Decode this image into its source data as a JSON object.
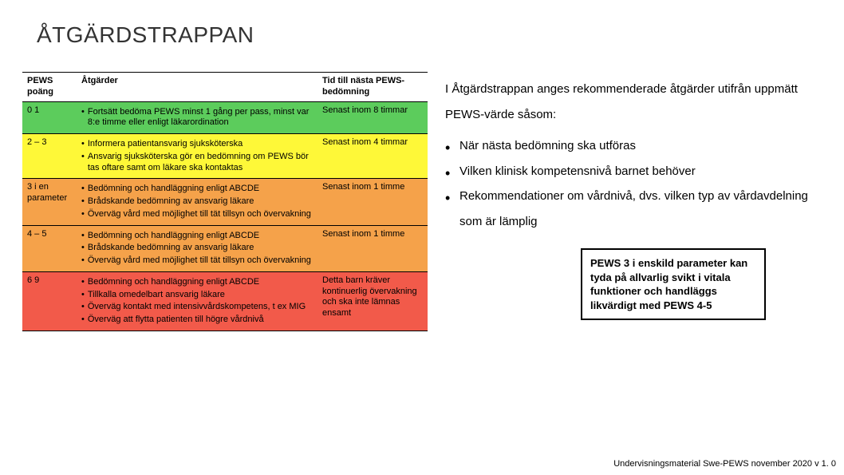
{
  "title": "ÅTGÄRDSTRAPPAN",
  "table": {
    "header": {
      "c1": "PEWS poäng",
      "c2": "Åtgärder",
      "c3": "Tid till nästa PEWS-bedömning"
    },
    "rows": [
      {
        "bg": "#5ccc5c",
        "c1": "0   1",
        "bullets": [
          "Fortsätt bedöma PEWS minst 1 gång per pass, minst var 8:e timme eller enligt läkarordination"
        ],
        "c3": "Senast inom 8 timmar"
      },
      {
        "bg": "#fef838",
        "c1": "2 – 3",
        "bullets": [
          "Informera patientansvarig sjuksköterska",
          "Ansvarig sjuksköterska gör en bedömning om PEWS bör tas oftare samt om läkare ska kontaktas"
        ],
        "c3": "Senast inom 4 timmar"
      },
      {
        "bg": "#f5a24a",
        "c1": "3 i en parameter",
        "bullets": [
          "Bedömning och handläggning enligt ABCDE",
          "Brådskande bedömning av ansvarig läkare",
          "Överväg vård med möjlighet till tät tillsyn och övervakning"
        ],
        "c3": "Senast inom 1 timme"
      },
      {
        "bg": "#f5a24a",
        "c1": "4 – 5",
        "bullets": [
          "Bedömning och handläggning enligt ABCDE",
          "Brådskande bedömning av ansvarig läkare",
          "Överväg vård med möjlighet till tät tillsyn och övervakning"
        ],
        "c3": "Senast inom 1 timme"
      },
      {
        "bg": "#f25a4a",
        "c1": "6   9",
        "bullets": [
          "Bedömning och handläggning enligt ABCDE",
          "Tillkalla omedelbart ansvarig läkare",
          "Överväg kontakt med intensivvårdskompetens, t ex MIG",
          "Överväg att flytta patienten till högre vårdnivå"
        ],
        "c3": "Detta barn kräver kontinuerlig övervakning och ska inte lämnas ensamt"
      }
    ]
  },
  "right": {
    "p1": "I Åtgärdstrappan anges rekommenderade åtgärder utifrån uppmätt PEWS-värde såsom:",
    "li1": "När nästa bedömning ska utföras",
    "li2": "Vilken klinisk kompetensnivå barnet behöver",
    "li3": "Rekommendationer om vårdnivå, dvs. vilken typ av vårdavdelning som är lämplig"
  },
  "boxnote": "PEWS  3 i enskild parameter kan tyda på allvarlig svikt i vitala funktioner och handläggs likvärdigt med PEWS 4-5",
  "footer": "Undervisningsmaterial Swe-PEWS november 2020 v 1. 0"
}
